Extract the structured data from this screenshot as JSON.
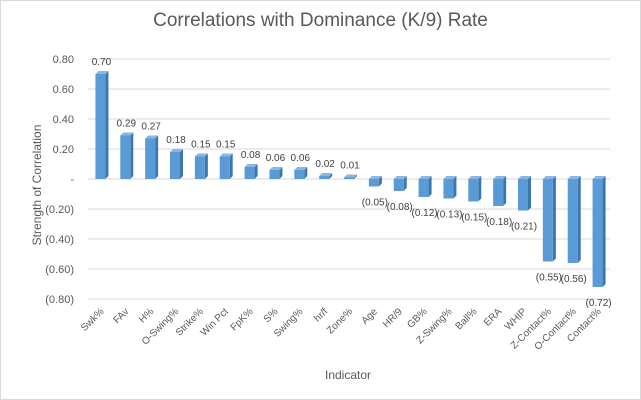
{
  "chart_data": {
    "type": "bar",
    "title": "Correlations with Dominance (K/9) Rate",
    "xlabel": "Indicator",
    "ylabel": "Strength of Correlation",
    "ylim": [
      -0.8,
      0.8
    ],
    "yticks": [
      0.8,
      0.6,
      0.4,
      0.2,
      0,
      -0.2,
      -0.4,
      -0.6,
      -0.8
    ],
    "ytick_labels": [
      "0.80",
      "0.60",
      "0.40",
      "0.20",
      "-",
      "(0.20)",
      "(0.40)",
      "(0.60)",
      "(0.80)"
    ],
    "categories": [
      "Swk%",
      "FAv",
      "H%",
      "O-Swing%",
      "Strike%",
      "Win Pct",
      "FpK%",
      "S%",
      "Swing%",
      "hr/f",
      "Zone%",
      "Age",
      "HR/9",
      "GB%",
      "Z-Swing%",
      "Ball%",
      "ERA",
      "WHIP",
      "Z-Contact%",
      "O-Contact%",
      "Contact%"
    ],
    "values": [
      0.7,
      0.29,
      0.27,
      0.18,
      0.15,
      0.15,
      0.08,
      0.06,
      0.06,
      0.02,
      0.01,
      -0.05,
      -0.08,
      -0.12,
      -0.13,
      -0.15,
      -0.18,
      -0.21,
      -0.55,
      -0.56,
      -0.72
    ],
    "data_labels": [
      "0.70",
      "0.29",
      "0.27",
      "0.18",
      "0.15",
      "0.15",
      "0.08",
      "0.06",
      "0.06",
      "0.02",
      "0.01",
      "(0.05)",
      "(0.08)",
      "(0.12)",
      "(0.13)",
      "(0.15)",
      "(0.18)",
      "(0.21)",
      "(0.55)",
      "(0.56)",
      "(0.72)"
    ],
    "grid": true,
    "legend": false,
    "bar_color": "#5b9bd5",
    "bar_side_color": "#3a76b0",
    "bar_top_color": "#8ab6e3"
  }
}
